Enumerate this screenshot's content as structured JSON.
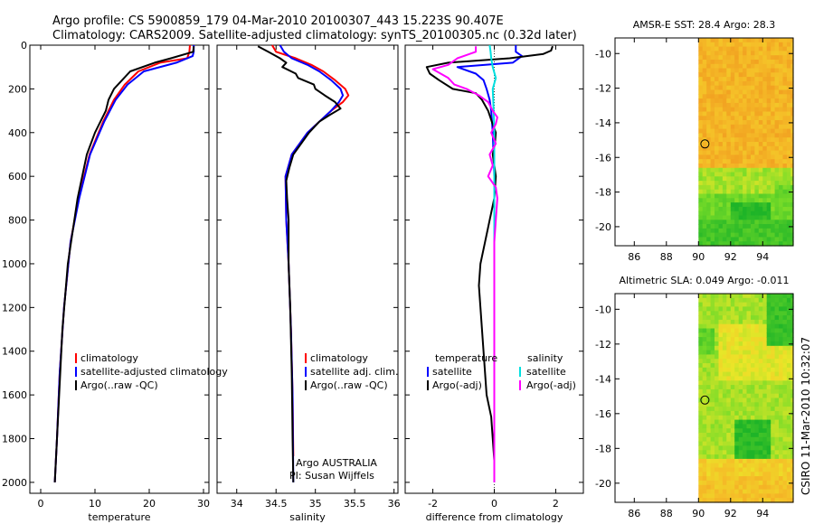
{
  "figure": {
    "title_line1": "Argo profile: CS 5900859_179 04-Mar-2010 20100307_443 15.223S 90.407E",
    "title_line2": "Climatology: CARS2009. Satellite-adjusted climatology: synTS_20100305.nc (0.32d later)",
    "credit": "CSIRO 11-Mar-2010 10:32:07",
    "colors": {
      "climatology": "#ff0000",
      "satellite": "#0000ff",
      "argo": "#000000",
      "satellite_diff": "#00e0e0",
      "salinity_diff": "#ff00ff"
    }
  },
  "chart_data": [
    {
      "id": "temperature",
      "type": "line",
      "xlabel": "temperature",
      "ylabel": "",
      "xlim": [
        -2,
        31
      ],
      "ylim": [
        2050,
        0
      ],
      "xticks": [
        0,
        10,
        20,
        30
      ],
      "yticks": [
        0,
        200,
        400,
        600,
        800,
        1000,
        1200,
        1400,
        1600,
        1800,
        2000
      ],
      "legend": {
        "position": "lower-center",
        "entries": [
          "climatology",
          "satellite-adjusted climatology",
          "Argo(..raw -QC)"
        ]
      },
      "series": [
        {
          "name": "climatology",
          "color": "#ff0000",
          "y": [
            0,
            30,
            60,
            80,
            120,
            180,
            250,
            350,
            500,
            700,
            900,
            1200,
            1500,
            1800,
            2000
          ],
          "x": [
            27.5,
            27.4,
            27.0,
            22.0,
            18.0,
            15.5,
            13.5,
            11.5,
            9.0,
            7.0,
            5.5,
            4.3,
            3.5,
            3.0,
            2.6
          ]
        },
        {
          "name": "satellite-adjusted climatology",
          "color": "#0000ff",
          "y": [
            0,
            30,
            50,
            80,
            120,
            180,
            250,
            350,
            500,
            700,
            900,
            1200,
            1500,
            1800,
            2000
          ],
          "x": [
            28.2,
            28.2,
            28.0,
            25.0,
            19.0,
            16.0,
            13.8,
            11.7,
            9.1,
            7.1,
            5.5,
            4.3,
            3.5,
            3.0,
            2.6
          ]
        },
        {
          "name": "Argo(..raw -QC)",
          "color": "#000000",
          "y": [
            5,
            30,
            60,
            80,
            120,
            160,
            200,
            250,
            300,
            350,
            400,
            500,
            700,
            1000,
            1300,
            1600,
            1800,
            2000
          ],
          "x": [
            28.2,
            28.1,
            24.0,
            21.0,
            16.5,
            15.0,
            13.5,
            12.5,
            12.0,
            11.0,
            10.0,
            8.5,
            6.8,
            5.0,
            4.0,
            3.4,
            3.0,
            2.6
          ]
        }
      ]
    },
    {
      "id": "salinity",
      "type": "line",
      "xlabel": "salinity",
      "ylabel": "",
      "xlim": [
        33.75,
        36.05
      ],
      "ylim": [
        2050,
        0
      ],
      "xticks": [
        34,
        34.5,
        35,
        35.5,
        36
      ],
      "xticklabels": [
        "34",
        "34.5",
        "35",
        "35.5",
        "36"
      ],
      "legend": {
        "position": "lower-center",
        "entries": [
          "climatology",
          "satellite adj. clim.",
          "Argo(..raw -QC)"
        ]
      },
      "annotations": [
        "Argo AUSTRALIA",
        "PI: Susan Wijffels"
      ],
      "series": [
        {
          "name": "climatology",
          "color": "#ff0000",
          "y": [
            0,
            30,
            60,
            90,
            120,
            160,
            200,
            230,
            260,
            300,
            350,
            400,
            450,
            500,
            600,
            800,
            1000,
            1300,
            1600,
            1880
          ],
          "x": [
            34.45,
            34.5,
            34.75,
            34.95,
            35.1,
            35.25,
            35.38,
            35.42,
            35.35,
            35.2,
            35.05,
            34.9,
            34.8,
            34.7,
            34.62,
            34.63,
            34.66,
            34.69,
            34.71,
            34.72
          ]
        },
        {
          "name": "satellite adj. clim.",
          "color": "#0000ff",
          "y": [
            0,
            30,
            60,
            90,
            120,
            160,
            200,
            230,
            260,
            300,
            350,
            400,
            450,
            500,
            600,
            800,
            1000,
            1300,
            1600,
            2000
          ],
          "x": [
            34.55,
            34.6,
            34.7,
            34.9,
            35.05,
            35.2,
            35.32,
            35.35,
            35.3,
            35.2,
            35.05,
            34.9,
            34.8,
            34.7,
            34.62,
            34.63,
            34.66,
            34.69,
            34.71,
            34.72
          ]
        },
        {
          "name": "Argo(..raw -QC)",
          "color": "#000000",
          "y": [
            5,
            30,
            60,
            80,
            100,
            130,
            150,
            180,
            200,
            230,
            260,
            290,
            320,
            350,
            400,
            450,
            500,
            560,
            620,
            700,
            800,
            1000,
            1200,
            1500,
            1800,
            2000
          ],
          "x": [
            34.27,
            34.4,
            34.55,
            34.63,
            34.58,
            34.75,
            34.78,
            34.98,
            35.0,
            35.12,
            35.25,
            35.32,
            35.18,
            35.05,
            34.92,
            34.82,
            34.72,
            34.67,
            34.63,
            34.64,
            34.66,
            34.66,
            34.68,
            34.7,
            34.71,
            34.72
          ]
        }
      ]
    },
    {
      "id": "difference",
      "type": "line",
      "xlabel": "difference from climatology",
      "ylabel": "",
      "xlim": [
        -2.9,
        2.9
      ],
      "ylim": [
        2050,
        0
      ],
      "xticks": [
        -2,
        0,
        2
      ],
      "legend": {
        "position": "lower",
        "entries": [
          "temperature",
          "satellite",
          "Argo(-adj)",
          "salinity",
          "satellite",
          "Argo(-adj)"
        ]
      },
      "series": [
        {
          "name": "temperature satellite",
          "color": "#0000ff",
          "y": [
            0,
            30,
            50,
            80,
            100,
            130,
            160,
            200,
            250,
            300,
            400,
            600,
            1000,
            2000
          ],
          "x": [
            0.7,
            0.7,
            0.9,
            0.6,
            -1.2,
            -0.6,
            -0.35,
            -0.25,
            -0.15,
            -0.1,
            -0.05,
            0,
            0,
            0
          ]
        },
        {
          "name": "temperature Argo(-adj)",
          "color": "#000000",
          "y": [
            5,
            25,
            40,
            60,
            80,
            100,
            130,
            160,
            200,
            220,
            250,
            300,
            350,
            400,
            450,
            500,
            600,
            700,
            800,
            900,
            1000,
            1100,
            1200,
            1400,
            1600,
            1700,
            1800,
            1900,
            2000
          ],
          "x": [
            1.9,
            1.85,
            1.6,
            0.5,
            -1.5,
            -2.2,
            -2.1,
            -1.8,
            -1.35,
            -0.6,
            -0.4,
            -0.2,
            -0.08,
            0.05,
            0.02,
            -0.05,
            0.05,
            0.0,
            -0.15,
            -0.3,
            -0.45,
            -0.5,
            -0.45,
            -0.35,
            -0.25,
            -0.1,
            -0.05,
            0.0,
            0.0
          ]
        },
        {
          "name": "salinity satellite",
          "color": "#00e0e0",
          "y": [
            0,
            30,
            60,
            100,
            150,
            200,
            300,
            400,
            600,
            1000,
            1500,
            2000
          ],
          "x": [
            -0.15,
            -0.12,
            -0.1,
            -0.05,
            0.05,
            -0.05,
            -0.02,
            0.0,
            0.0,
            0.0,
            0.0,
            0.0
          ]
        },
        {
          "name": "salinity Argo(-adj)",
          "color": "#ff00ff",
          "y": [
            5,
            30,
            60,
            90,
            110,
            150,
            180,
            200,
            230,
            260,
            300,
            330,
            360,
            400,
            450,
            500,
            550,
            600,
            650,
            700,
            800,
            900,
            1000,
            1200,
            1500,
            1800,
            2000
          ],
          "x": [
            -0.6,
            -0.6,
            -1.2,
            -1.5,
            -2.0,
            -1.5,
            -1.3,
            -0.9,
            -0.5,
            -0.2,
            -0.05,
            0.1,
            0.05,
            -0.1,
            0.05,
            -0.15,
            -0.05,
            -0.2,
            0.05,
            0.1,
            0.05,
            0.0,
            0.0,
            0.0,
            0.0,
            0.0,
            0.0
          ]
        }
      ]
    },
    {
      "id": "sst-map",
      "type": "heatmap",
      "title": "AMSR-E SST: 28.4 Argo: 28.3",
      "xlim": [
        84.8,
        95.9
      ],
      "ylim": [
        -21.1,
        -9.1
      ],
      "xticks": [
        86,
        88,
        90,
        92,
        94
      ],
      "yticks": [
        -10,
        -12,
        -14,
        -16,
        -18,
        -20
      ],
      "data_extent_lon": [
        90,
        95.9
      ],
      "marker": {
        "lon": 90.4,
        "lat": -15.22
      }
    },
    {
      "id": "sla-map",
      "type": "heatmap",
      "title": "Altimetric SLA: 0.049 Argo: -0.011",
      "xlim": [
        84.8,
        95.9
      ],
      "ylim": [
        -21.1,
        -9.1
      ],
      "xticks": [
        86,
        88,
        90,
        92,
        94
      ],
      "yticks": [
        -10,
        -12,
        -14,
        -16,
        -18,
        -20
      ],
      "data_extent_lon": [
        90,
        95.9
      ],
      "marker": {
        "lon": 90.4,
        "lat": -15.22
      }
    }
  ]
}
